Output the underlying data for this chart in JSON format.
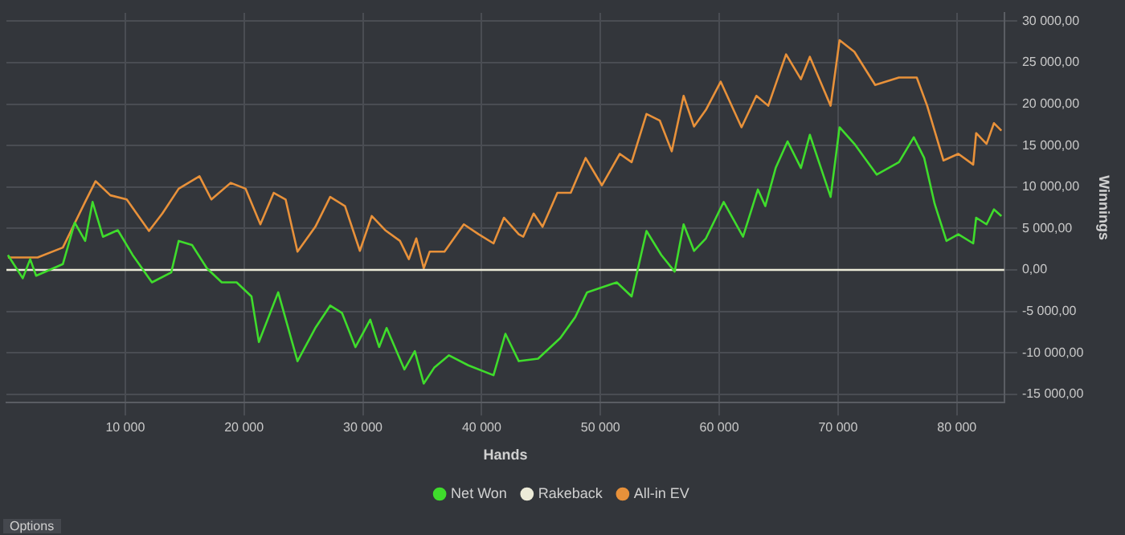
{
  "chart_data": {
    "type": "line",
    "xlabel": "Hands",
    "ylabel": "Winnings",
    "xlim": [
      0,
      84000
    ],
    "xticks": [
      {
        "value": 10000,
        "label": "10 000"
      },
      {
        "value": 20000,
        "label": "20 000"
      },
      {
        "value": 30000,
        "label": "30 000"
      },
      {
        "value": 40000,
        "label": "40 000"
      },
      {
        "value": 50000,
        "label": "50 000"
      },
      {
        "value": 60000,
        "label": "60 000"
      },
      {
        "value": 70000,
        "label": "70 000"
      },
      {
        "value": 80000,
        "label": "80 000"
      }
    ],
    "ylim": [
      -16000,
      31000
    ],
    "yticks": [
      {
        "value": -15000,
        "label": "-15 000,00"
      },
      {
        "value": -10000,
        "label": "-10 000,00"
      },
      {
        "value": -5000,
        "label": "-5 000,00"
      },
      {
        "value": 0,
        "label": "0,00"
      },
      {
        "value": 5000,
        "label": "5 000,00"
      },
      {
        "value": 10000,
        "label": "10 000,00"
      },
      {
        "value": 15000,
        "label": "15 000,00"
      },
      {
        "value": 20000,
        "label": "20 000,00"
      },
      {
        "value": 25000,
        "label": "25 000,00"
      },
      {
        "value": 30000,
        "label": "30 000,00"
      }
    ],
    "grid": true,
    "legend": "bottom",
    "marker": "none",
    "line_style": "solid",
    "annotations": [
      "Options"
    ],
    "series": [
      {
        "name": "Net Won",
        "color": "#3fdc2c",
        "x": [
          125,
          1375,
          2000,
          2500,
          4750,
          5750,
          6625,
          7250,
          8125,
          9375,
          10625,
          12250,
          13875,
          14500,
          15625,
          16875,
          18125,
          19375,
          20625,
          21250,
          22875,
          24500,
          26000,
          27250,
          28250,
          29375,
          30625,
          31375,
          32000,
          33500,
          34375,
          35125,
          36000,
          37250,
          38875,
          41000,
          42000,
          43125,
          44750,
          46625,
          47875,
          48875,
          51375,
          52625,
          53875,
          55125,
          56250,
          57000,
          57875,
          58875,
          60375,
          62000,
          63250,
          63875,
          64750,
          65750,
          66875,
          67625,
          69375,
          70125,
          71375,
          73250,
          75125,
          76375,
          77250,
          78125,
          79125,
          80125,
          81375,
          81625,
          82500,
          83125,
          83750
        ],
        "values": [
          1800,
          -1000,
          1300,
          -700,
          700,
          5700,
          3500,
          8200,
          4000,
          4800,
          1800,
          -1500,
          -300,
          3500,
          3000,
          200,
          -1500,
          -1500,
          -3200,
          -8700,
          -2700,
          -11000,
          -7000,
          -4300,
          -5200,
          -9300,
          -6000,
          -9300,
          -7000,
          -12000,
          -9800,
          -13700,
          -11800,
          -10300,
          -11500,
          -12700,
          -7700,
          -11000,
          -10700,
          -8200,
          -5700,
          -2700,
          -1500,
          -3200,
          4700,
          1800,
          -200,
          5500,
          2300,
          3800,
          8200,
          4000,
          9700,
          7700,
          12300,
          15500,
          12300,
          16300,
          8800,
          17200,
          15200,
          11500,
          13000,
          16000,
          13500,
          8000,
          3500,
          4300,
          3200,
          6300,
          5500,
          7300,
          6500
        ]
      },
      {
        "name": "Rakeback",
        "color": "#ecebd8",
        "x": [
          0,
          84000
        ],
        "values": [
          0,
          0
        ]
      },
      {
        "name": "All-in EV",
        "color": "#e8913a",
        "x": [
          125,
          2625,
          4750,
          6625,
          7500,
          8750,
          10125,
          12000,
          13125,
          14500,
          16250,
          17250,
          18875,
          20125,
          21375,
          22500,
          23500,
          24500,
          26000,
          27250,
          28500,
          29750,
          30750,
          31875,
          33125,
          33875,
          34500,
          35125,
          35625,
          36875,
          38500,
          39750,
          41000,
          41875,
          43125,
          43500,
          44375,
          45125,
          46375,
          47500,
          48750,
          50125,
          51625,
          52625,
          53875,
          55000,
          56000,
          57000,
          57875,
          58875,
          60125,
          61875,
          63125,
          64125,
          65625,
          66875,
          67625,
          69375,
          70125,
          71375,
          73125,
          75125,
          76625,
          77500,
          78875,
          80125,
          81375,
          81625,
          82500,
          83125,
          83750
        ],
        "values": [
          1500,
          1500,
          2700,
          8200,
          10700,
          9000,
          8500,
          4700,
          6800,
          9800,
          11300,
          8500,
          10500,
          9800,
          5500,
          9300,
          8500,
          2200,
          5200,
          8800,
          7700,
          2300,
          6500,
          4800,
          3500,
          1300,
          3800,
          200,
          2200,
          2200,
          5500,
          4300,
          3200,
          6300,
          4300,
          4000,
          6800,
          5200,
          9300,
          9300,
          13500,
          10200,
          14000,
          13000,
          18800,
          18000,
          14300,
          21000,
          17300,
          19300,
          22700,
          17200,
          21000,
          19800,
          26000,
          23000,
          25700,
          19800,
          27700,
          26300,
          22300,
          23200,
          23200,
          19800,
          13200,
          14000,
          12700,
          16500,
          15200,
          17700,
          16800
        ]
      }
    ]
  }
}
